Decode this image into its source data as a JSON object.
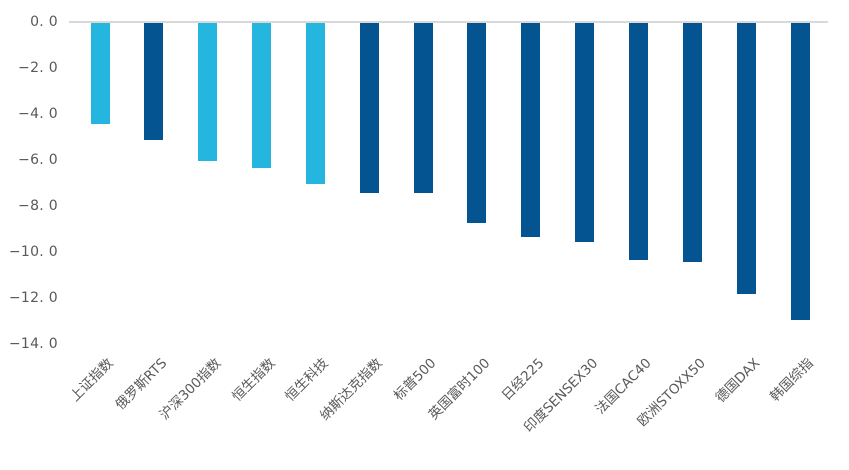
{
  "chart_data": {
    "type": "bar",
    "title": "",
    "xlabel": "",
    "ylabel": "",
    "bar_orientation": "vertical",
    "x_label_rotation_deg": 45,
    "grid": false,
    "legend": false,
    "ylim": [
      -14.0,
      0.0
    ],
    "ytick_interval": 2.0,
    "yticks": [
      {
        "label": "0. 0",
        "value": 0.0
      },
      {
        "label": "−2. 0",
        "value": -2.0
      },
      {
        "label": "−4. 0",
        "value": -4.0
      },
      {
        "label": "−6. 0",
        "value": -6.0
      },
      {
        "label": "−8. 0",
        "value": -8.0
      },
      {
        "label": "−10. 0",
        "value": -10.0
      },
      {
        "label": "−12. 0",
        "value": -12.0
      },
      {
        "label": "−14. 0",
        "value": -14.0
      }
    ],
    "categories": [
      "上证指数",
      "俄罗斯RTS",
      "沪深300指数",
      "恒生指数",
      "恒生科技",
      "纳斯达克指数",
      "标普500",
      "英国富时100",
      "日经225",
      "印度SENSEX30",
      "法国CAC40",
      "欧洲STOXX50",
      "德国DAX",
      "韩国综指"
    ],
    "values": [
      -4.4,
      -5.1,
      -6.0,
      -6.3,
      -7.0,
      -7.4,
      -7.4,
      -8.7,
      -9.3,
      -9.5,
      -10.3,
      -10.4,
      -11.8,
      -12.9
    ],
    "bar_color_keys": [
      "light",
      "dark",
      "light",
      "light",
      "light",
      "dark",
      "dark",
      "dark",
      "dark",
      "dark",
      "dark",
      "dark",
      "dark",
      "dark"
    ],
    "colors": {
      "light": "#24B6DF",
      "dark": "#045492",
      "axis_line": "#D9D9D9",
      "label_text": "#595959"
    }
  }
}
